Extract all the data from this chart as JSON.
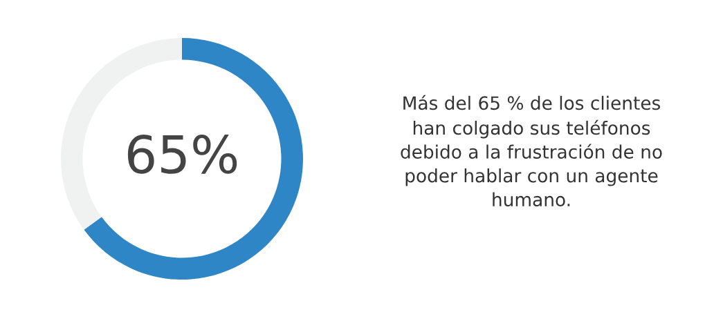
{
  "chart_data": {
    "type": "donut",
    "categories": [
      null,
      null
    ],
    "values": [
      65,
      35
    ],
    "colors": [
      "#2e86c6",
      "#f0f1f1"
    ],
    "annotations": [
      "65%",
      "Más del 65 % de los clientes\nhan colgado sus teléfonos\ndebido a la frustración de no\npoder hablar con un agente\nhumano."
    ]
  }
}
